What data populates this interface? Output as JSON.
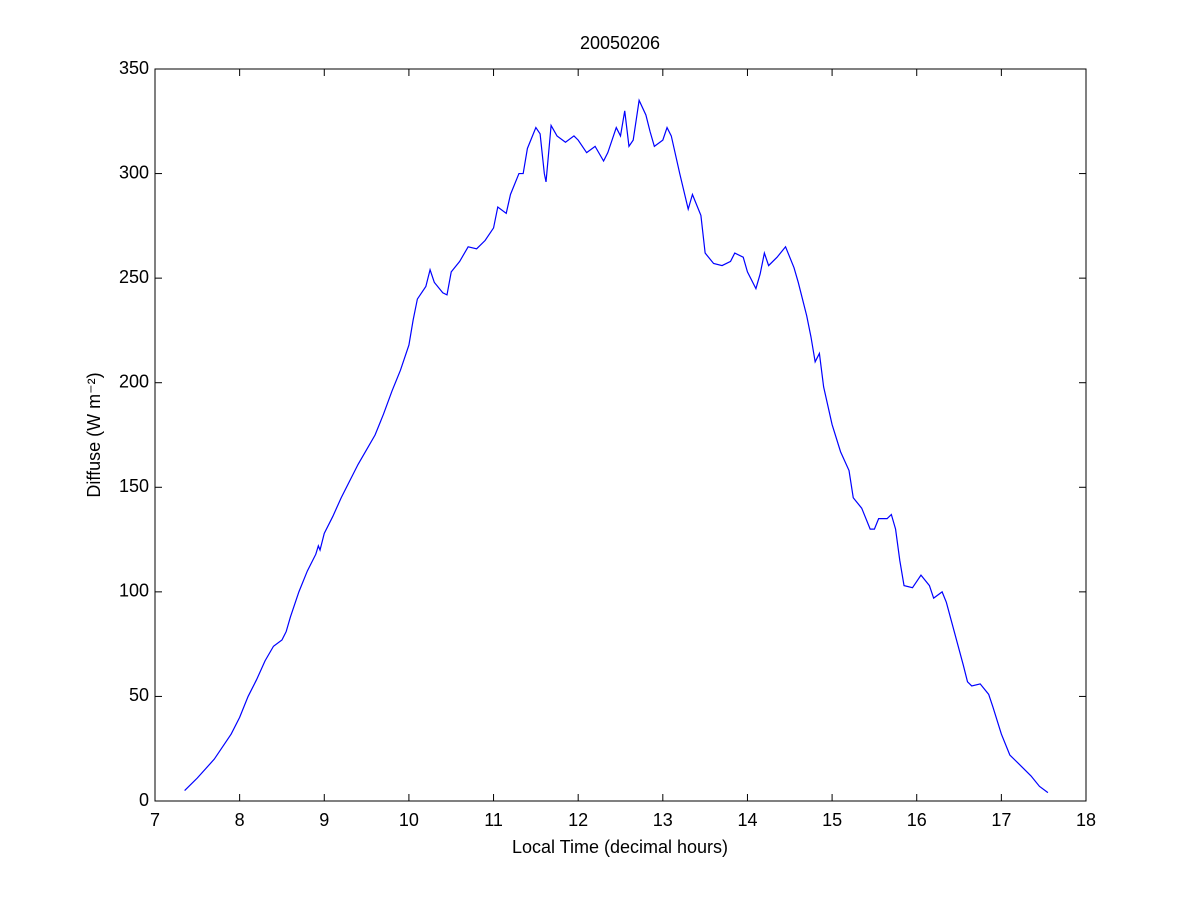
{
  "chart_data": {
    "type": "line",
    "title": "20050206",
    "xlabel": "Local Time (decimal hours)",
    "ylabel": "Diffuse (W m⁻²)",
    "color": "#0000ff",
    "x": [
      7.35,
      7.5,
      7.7,
      7.9,
      8.0,
      8.1,
      8.2,
      8.3,
      8.4,
      8.5,
      8.55,
      8.6,
      8.7,
      8.8,
      8.9,
      8.93,
      8.95,
      9.0,
      9.1,
      9.2,
      9.3,
      9.4,
      9.5,
      9.6,
      9.7,
      9.8,
      9.9,
      10.0,
      10.05,
      10.1,
      10.2,
      10.25,
      10.3,
      10.4,
      10.45,
      10.5,
      10.6,
      10.7,
      10.8,
      10.9,
      11.0,
      11.05,
      11.15,
      11.2,
      11.3,
      11.35,
      11.4,
      11.5,
      11.55,
      11.6,
      11.62,
      11.68,
      11.75,
      11.85,
      11.95,
      12.0,
      12.1,
      12.2,
      12.3,
      12.35,
      12.45,
      12.5,
      12.55,
      12.6,
      12.65,
      12.72,
      12.8,
      12.85,
      12.9,
      13.0,
      13.05,
      13.1,
      13.2,
      13.3,
      13.35,
      13.45,
      13.5,
      13.6,
      13.7,
      13.8,
      13.85,
      13.95,
      14.0,
      14.1,
      14.15,
      14.2,
      14.25,
      14.35,
      14.45,
      14.55,
      14.6,
      14.7,
      14.75,
      14.8,
      14.85,
      14.9,
      15.0,
      15.1,
      15.2,
      15.25,
      15.35,
      15.45,
      15.5,
      15.55,
      15.65,
      15.7,
      15.75,
      15.8,
      15.85,
      15.95,
      16.0,
      16.05,
      16.15,
      16.2,
      16.3,
      16.35,
      16.45,
      16.55,
      16.6,
      16.65,
      16.75,
      16.85,
      16.9,
      17.0,
      17.1,
      17.2,
      17.35,
      17.45,
      17.55
    ],
    "values": [
      5,
      11,
      20,
      32,
      40,
      50,
      58,
      67,
      74,
      77,
      81,
      88,
      100,
      110,
      118,
      122,
      120,
      128,
      136,
      145,
      153,
      161,
      168,
      175,
      185,
      196,
      206,
      218,
      230,
      240,
      246,
      254,
      248,
      243,
      242,
      253,
      258,
      265,
      264,
      268,
      274,
      284,
      281,
      290,
      300,
      300,
      312,
      322,
      319,
      300,
      296,
      323,
      318,
      315,
      318,
      316,
      310,
      313,
      306,
      310,
      322,
      318,
      330,
      313,
      316,
      335,
      328,
      320,
      313,
      316,
      322,
      318,
      300,
      283,
      290,
      280,
      262,
      257,
      256,
      258,
      262,
      260,
      253,
      245,
      252,
      262,
      256,
      260,
      265,
      255,
      248,
      232,
      222,
      210,
      214,
      198,
      180,
      167,
      158,
      145,
      140,
      130,
      130,
      135,
      135,
      137,
      130,
      115,
      103,
      102,
      105,
      108,
      103,
      97,
      100,
      95,
      80,
      65,
      57,
      55,
      56,
      51,
      45,
      32,
      22,
      18,
      12,
      7,
      4
    ],
    "xlim": [
      7,
      18
    ],
    "xticks": [
      7,
      8,
      9,
      10,
      11,
      12,
      13,
      14,
      15,
      16,
      17,
      18
    ],
    "ylim": [
      0,
      350
    ],
    "yticks": [
      0,
      50,
      100,
      150,
      200,
      250,
      300,
      350
    ]
  }
}
